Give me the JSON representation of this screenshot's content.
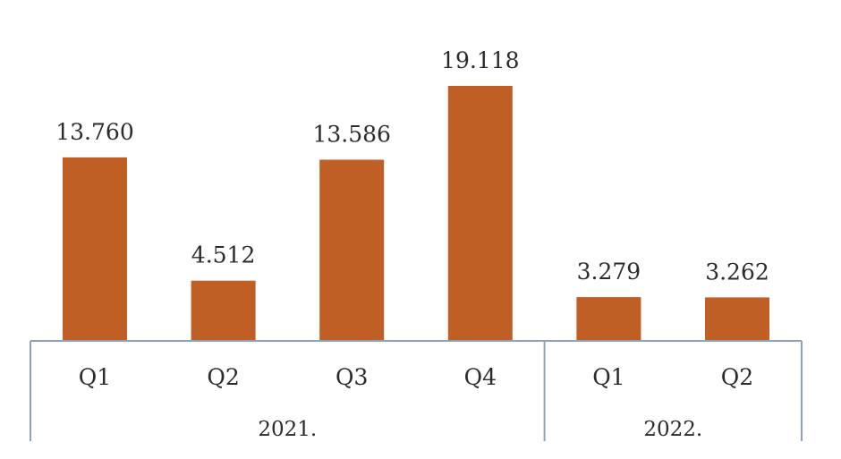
{
  "chart_data": {
    "type": "bar",
    "groups": [
      {
        "label": "2021.",
        "categories": [
          "Q1",
          "Q2",
          "Q3",
          "Q4"
        ],
        "values": [
          13760,
          4512,
          13586,
          19118
        ],
        "value_labels": [
          "13.760",
          "4.512",
          "13.586",
          "19.118"
        ]
      },
      {
        "label": "2022.",
        "categories": [
          "Q1",
          "Q2"
        ],
        "values": [
          3279,
          3262
        ],
        "value_labels": [
          "3.279",
          "3.262"
        ]
      }
    ],
    "bar_color": "#bf5f26",
    "axis_color": "#8fa3b8",
    "ylim": [
      0,
      19118
    ],
    "grid": false,
    "legend": "none"
  }
}
